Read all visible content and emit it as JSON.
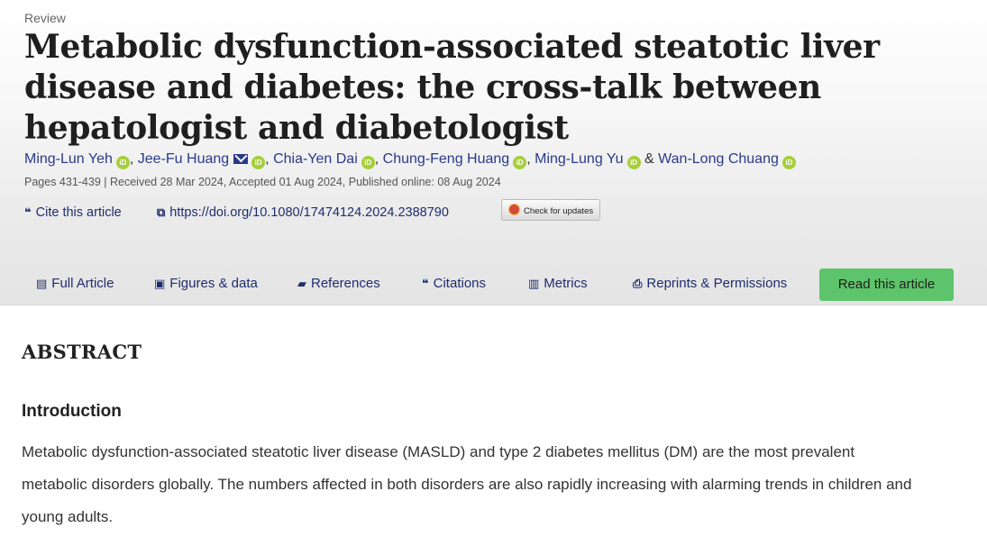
{
  "article": {
    "type": "Review",
    "title": "Metabolic dysfunction-associated steatotic liver disease and diabetes: the cross-talk between hepatologist and diabetologist",
    "authors": [
      "Ming-Lun Yeh",
      "Jee-Fu Huang",
      "Chia-Yen Dai",
      "Chung-Feng Huang",
      "Ming-Lung Yu",
      "Wan-Long Chuang"
    ],
    "author_separator": ",",
    "author_last_separator": "&",
    "orcid_label": "iD",
    "meta": "Pages 431-439 | Received 28 Mar 2024, Accepted 01 Aug 2024, Published online: 08 Aug 2024"
  },
  "tools": {
    "cite_label": "Cite this article",
    "doi": "https://doi.org/10.1080/17474124.2024.2388790",
    "check_updates": "Check for updates"
  },
  "nav": {
    "full_article": "Full Article",
    "figures": "Figures & data",
    "references": "References",
    "citations": "Citations",
    "metrics": "Metrics",
    "reprints": "Reprints & Permissions",
    "read": "Read this article"
  },
  "abstract": {
    "heading": "ABSTRACT",
    "section": "Introduction",
    "text": "Metabolic dysfunction-associated steatotic liver disease (MASLD) and type 2 diabetes mellitus (DM) are the most prevalent metabolic disorders globally. The numbers affected in both disorders are also rapidly increasing with alarming trends in children and young adults."
  },
  "colors": {
    "link": "#2a3a8a",
    "orcid": "#a6ce39",
    "read_button": "#5ec46b"
  },
  "icons": [
    "mail-icon",
    "orcid-icon",
    "quote-icon",
    "doi-link-icon",
    "document-icon",
    "image-icon",
    "book-icon",
    "bar-chart-icon",
    "printer-icon",
    "crossmark-icon"
  ]
}
